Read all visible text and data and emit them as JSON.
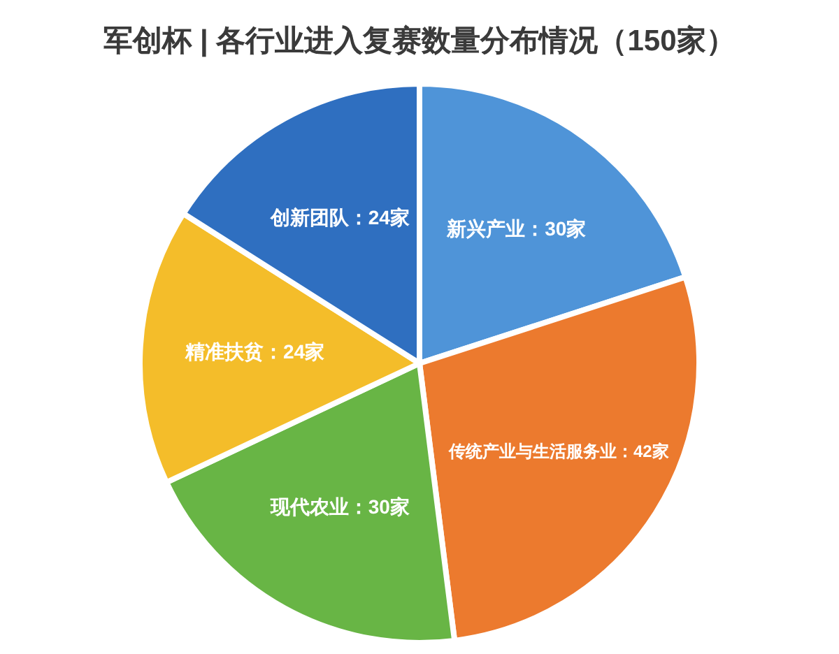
{
  "chart_data": {
    "type": "pie",
    "title": "军创杯 | 各行业进入复赛数量分布情况（150家）",
    "categories": [
      "新兴产业",
      "传统产业与生活服务业",
      "现代农业",
      "精准扶贫",
      "创新团队"
    ],
    "values": [
      30,
      42,
      30,
      24,
      24
    ],
    "value_labels": [
      "30家",
      "42家",
      "30家",
      "24家",
      "24家"
    ],
    "colors": [
      "#4f94d8",
      "#ec7a2e",
      "#68b545",
      "#f4bd2a",
      "#2f6fc0"
    ]
  }
}
